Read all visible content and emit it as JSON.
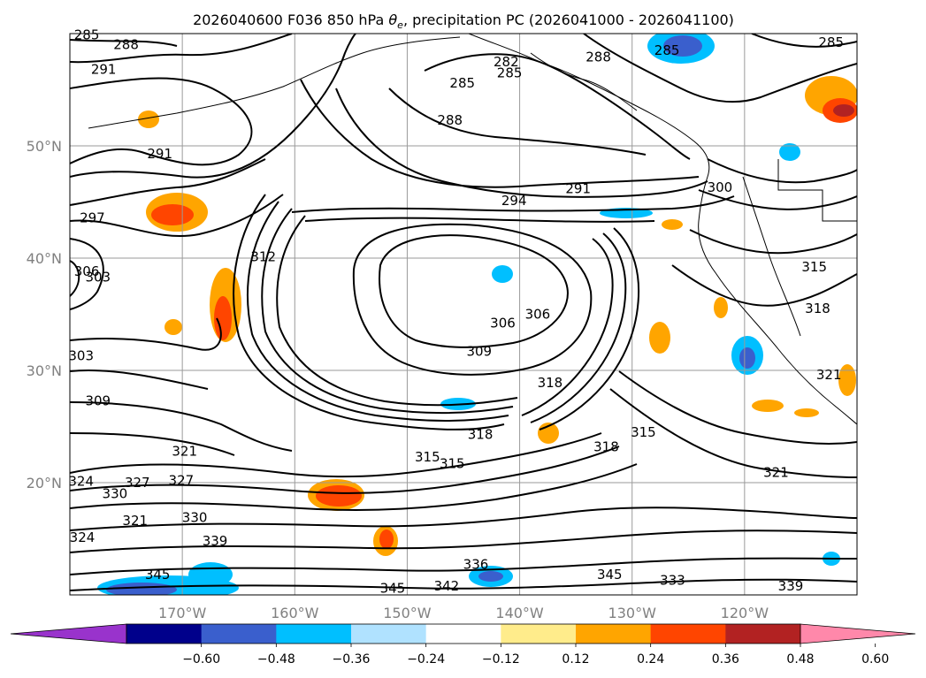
{
  "chart_data": {
    "type": "map-contour",
    "title": "2026040600 F036 850 hPa θe, precipitation PC (2026041000 - 2026041100)",
    "title_parts": {
      "pre": "2026040600 F036 850 hPa ",
      "theta": "θ",
      "sub": "e",
      "post": ", precipitation PC (2026041000 - 2026041100)"
    },
    "lon_range": [
      -180,
      -110
    ],
    "lat_range": [
      10,
      60
    ],
    "lon_ticks": [
      {
        "value": -170,
        "label": "170°W"
      },
      {
        "value": -160,
        "label": "160°W"
      },
      {
        "value": -150,
        "label": "150°W"
      },
      {
        "value": -140,
        "label": "140°W"
      },
      {
        "value": -130,
        "label": "130°W"
      },
      {
        "value": -120,
        "label": "120°W"
      }
    ],
    "lat_ticks": [
      {
        "value": 20,
        "label": "20°N"
      },
      {
        "value": 30,
        "label": "30°N"
      },
      {
        "value": 40,
        "label": "40°N"
      },
      {
        "value": 50,
        "label": "50°N"
      }
    ],
    "grid": true,
    "colorbar": {
      "extend": "both",
      "under_color": "#9933cc",
      "over_color": "#ff88aa",
      "colors": [
        "#00008b",
        "#3a5fcd",
        "#00bfff",
        "#b0e2ff",
        "#ffffff",
        "#ffec8b",
        "#ffa500",
        "#ff4500",
        "#b22222"
      ],
      "tick_values": [
        -0.6,
        -0.48,
        -0.36,
        -0.24,
        -0.12,
        0.12,
        0.24,
        0.36,
        0.48,
        0.6
      ],
      "tick_labels": [
        "−0.60",
        "−0.48",
        "−0.36",
        "−0.24",
        "−0.12",
        "0.12",
        "0.24",
        "0.36",
        "0.48",
        "0.60"
      ]
    },
    "contour_labels": [
      {
        "text": "285",
        "lon": -178.5,
        "lat": 59.9
      },
      {
        "text": "288",
        "lon": -175,
        "lat": 59
      },
      {
        "text": "291",
        "lon": -177,
        "lat": 56.8
      },
      {
        "text": "291",
        "lon": -172,
        "lat": 49.3
      },
      {
        "text": "297",
        "lon": -178,
        "lat": 43.6
      },
      {
        "text": "306",
        "lon": -178.5,
        "lat": 38.8
      },
      {
        "text": "303",
        "lon": -177.5,
        "lat": 38.3
      },
      {
        "text": "303",
        "lon": -179,
        "lat": 31.3
      },
      {
        "text": "309",
        "lon": -177.5,
        "lat": 27.3
      },
      {
        "text": "321",
        "lon": -169.8,
        "lat": 22.8
      },
      {
        "text": "327",
        "lon": -170.1,
        "lat": 20.2
      },
      {
        "text": "324",
        "lon": -179,
        "lat": 20.1
      },
      {
        "text": "330",
        "lon": -176,
        "lat": 19
      },
      {
        "text": "327",
        "lon": -174,
        "lat": 20
      },
      {
        "text": "321",
        "lon": -174.2,
        "lat": 16.6
      },
      {
        "text": "324",
        "lon": -178.9,
        "lat": 15.1
      },
      {
        "text": "330",
        "lon": -168.9,
        "lat": 16.9
      },
      {
        "text": "339",
        "lon": -167.1,
        "lat": 14.8
      },
      {
        "text": "345",
        "lon": -172.2,
        "lat": 11.8
      },
      {
        "text": "285",
        "lon": -145.1,
        "lat": 55.6
      },
      {
        "text": "282",
        "lon": -141.2,
        "lat": 57.5
      },
      {
        "text": "285",
        "lon": -140.9,
        "lat": 56.5
      },
      {
        "text": "288",
        "lon": -133,
        "lat": 57.9
      },
      {
        "text": "285",
        "lon": -126.9,
        "lat": 58.5
      },
      {
        "text": "285",
        "lon": -112.3,
        "lat": 59.2
      },
      {
        "text": "288",
        "lon": -146.2,
        "lat": 52.3
      },
      {
        "text": "291",
        "lon": -134.8,
        "lat": 46.2
      },
      {
        "text": "294",
        "lon": -140.5,
        "lat": 45.1
      },
      {
        "text": "300",
        "lon": -122.2,
        "lat": 46.3
      },
      {
        "text": "312",
        "lon": -162.8,
        "lat": 40.1
      },
      {
        "text": "306",
        "lon": -141.5,
        "lat": 34.2
      },
      {
        "text": "306",
        "lon": -138.4,
        "lat": 35
      },
      {
        "text": "309",
        "lon": -143.6,
        "lat": 31.7
      },
      {
        "text": "318",
        "lon": -137.3,
        "lat": 28.9
      },
      {
        "text": "318",
        "lon": -143.5,
        "lat": 24.3
      },
      {
        "text": "315",
        "lon": -148.2,
        "lat": 22.3
      },
      {
        "text": "315",
        "lon": -146,
        "lat": 21.7
      },
      {
        "text": "318",
        "lon": -132.3,
        "lat": 23.2
      },
      {
        "text": "315",
        "lon": -129,
        "lat": 24.5
      },
      {
        "text": "321",
        "lon": -117.2,
        "lat": 20.9
      },
      {
        "text": "336",
        "lon": -143.9,
        "lat": 12.7
      },
      {
        "text": "345",
        "lon": -132,
        "lat": 11.8
      },
      {
        "text": "333",
        "lon": -126.4,
        "lat": 11.3
      },
      {
        "text": "342",
        "lon": -146.5,
        "lat": 10.8
      },
      {
        "text": "345",
        "lon": -151.3,
        "lat": 10.6
      },
      {
        "text": "339",
        "lon": -115.9,
        "lat": 10.8
      },
      {
        "text": "315",
        "lon": -113.8,
        "lat": 39.2
      },
      {
        "text": "318",
        "lon": -113.5,
        "lat": 35.5
      },
      {
        "text": "321",
        "lon": -112.5,
        "lat": 29.6
      }
    ]
  }
}
